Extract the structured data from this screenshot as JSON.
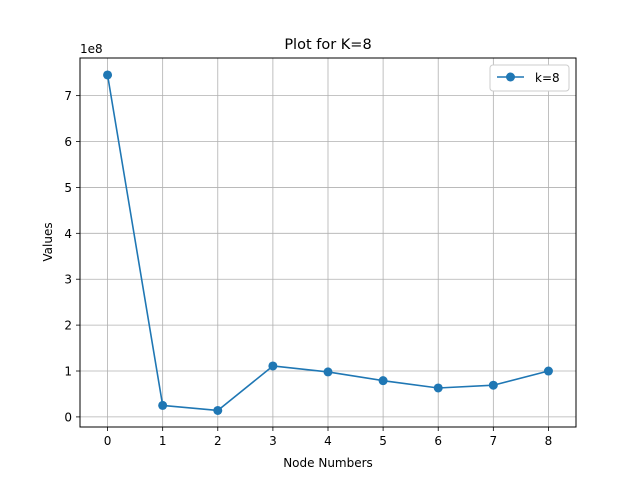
{
  "chart_data": {
    "type": "line",
    "title": "Plot for K=8",
    "xlabel": "Node Numbers",
    "ylabel": "Values",
    "offset_label": "1e8",
    "x": [
      0,
      1,
      2,
      3,
      4,
      5,
      6,
      7,
      8
    ],
    "series": [
      {
        "name": "k=8",
        "color": "#1f77b4",
        "values": [
          745000000,
          25000000,
          14000000,
          111000000,
          98000000,
          79000000,
          63000000,
          69000000,
          100000000
        ]
      }
    ],
    "xlim": [
      -0.5,
      8.5
    ],
    "ylim": [
      -22000000,
      782000000
    ],
    "x_ticks": [
      0,
      1,
      2,
      3,
      4,
      5,
      6,
      7,
      8
    ],
    "y_ticks": [
      0,
      100000000,
      200000000,
      300000000,
      400000000,
      500000000,
      600000000,
      700000000
    ],
    "y_tick_labels": [
      "0",
      "1",
      "2",
      "3",
      "4",
      "5",
      "6",
      "7"
    ],
    "grid": true,
    "legend_position": "top-right"
  }
}
